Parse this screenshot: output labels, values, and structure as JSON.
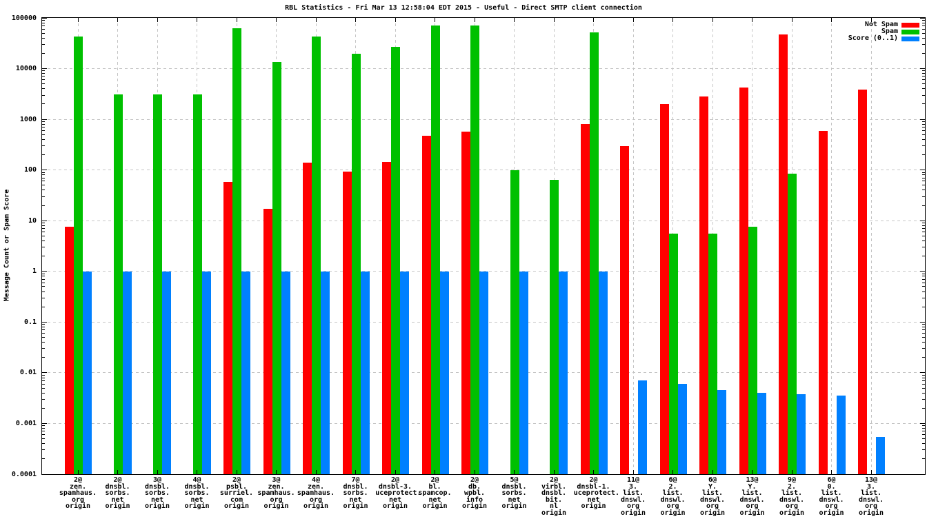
{
  "chart_data": {
    "type": "bar",
    "title": "RBL Statistics - Fri Mar 13 12:58:04 EDT 2015 - Useful - Direct SMTP client connection",
    "ylabel": "Message Count or Spam Score",
    "xlabel": "",
    "y_scale": "log",
    "ylim": [
      0.0001,
      100000
    ],
    "y_tick_labels": [
      "100000",
      "10000",
      "1000",
      "100",
      "10",
      "1",
      "0.1",
      "0.01",
      "0.001",
      "0.0001"
    ],
    "grid": true,
    "legend_position": "top-right-inside",
    "legend": [
      {
        "label": "Not Spam",
        "color": "#ff0000"
      },
      {
        "label": "Spam",
        "color": "#00c000"
      },
      {
        "label": "Score (0..1)",
        "color": "#0080ff"
      }
    ],
    "categories": [
      "2@\nzen.\nspamhaus.\norg\norigin",
      "2@\ndnsbl.\nsorbs.\nnet\norigin",
      "3@\ndnsbl.\nsorbs.\nnet\norigin",
      "4@\ndnsbl.\nsorbs.\nnet\norigin",
      "2@\npsbl.\nsurriel.\ncom\norigin",
      "3@\nzen.\nspamhaus.\norg\norigin",
      "4@\nzen.\nspamhaus.\norg\norigin",
      "7@\ndnsbl.\nsorbs.\nnet\norigin",
      "2@\ndnsbl-3.\nuceprotect.\nnet\norigin",
      "2@\nbl.\nspamcop.\nnet\norigin",
      "2@\ndb.\nwpbl.\ninfo\norigin",
      "5@\ndnsbl.\nsorbs.\nnet\norigin",
      "2@\nvirbl.\ndnsbl.\nbit.\nnl\norigin",
      "2@\ndnsbl-1.\nuceprotect.\nnet\norigin",
      "11@\n3.\nlist.\ndnswl.\norg\norigin",
      "6@\n2.\nlist.\ndnswl.\norg\norigin",
      "6@\nY.\nlist.\ndnswl.\norg\norigin",
      "13@\nY.\nlist.\ndnswl.\norg\norigin",
      "9@\n2.\nlist.\ndnswl.\norg\norigin",
      "6@\n0.\nlist.\ndnswl.\norg\norigin",
      "13@\n3.\nlist.\ndnswl.\norg\norigin"
    ],
    "series": [
      {
        "name": "Not Spam",
        "color": "#ff0000",
        "values": [
          7.6,
          null,
          null,
          null,
          58,
          17,
          140,
          92,
          145,
          480,
          570,
          null,
          null,
          800,
          295,
          2000,
          2800,
          4300,
          47000,
          590,
          3800
        ]
      },
      {
        "name": "Spam",
        "color": "#00c000",
        "values": [
          43000,
          3100,
          3100,
          3100,
          62000,
          13500,
          43000,
          19500,
          27000,
          70000,
          70000,
          100,
          64,
          52000,
          null,
          5.6,
          5.6,
          7.7,
          84,
          null,
          null
        ]
      },
      {
        "name": "Score (0..1)",
        "color": "#0080ff",
        "values": [
          1,
          1,
          1,
          1,
          1,
          1,
          1,
          1,
          1,
          1,
          1,
          1,
          1,
          1,
          0.007,
          0.006,
          0.0045,
          0.004,
          0.0038,
          0.0035,
          0.00055
        ]
      }
    ]
  }
}
